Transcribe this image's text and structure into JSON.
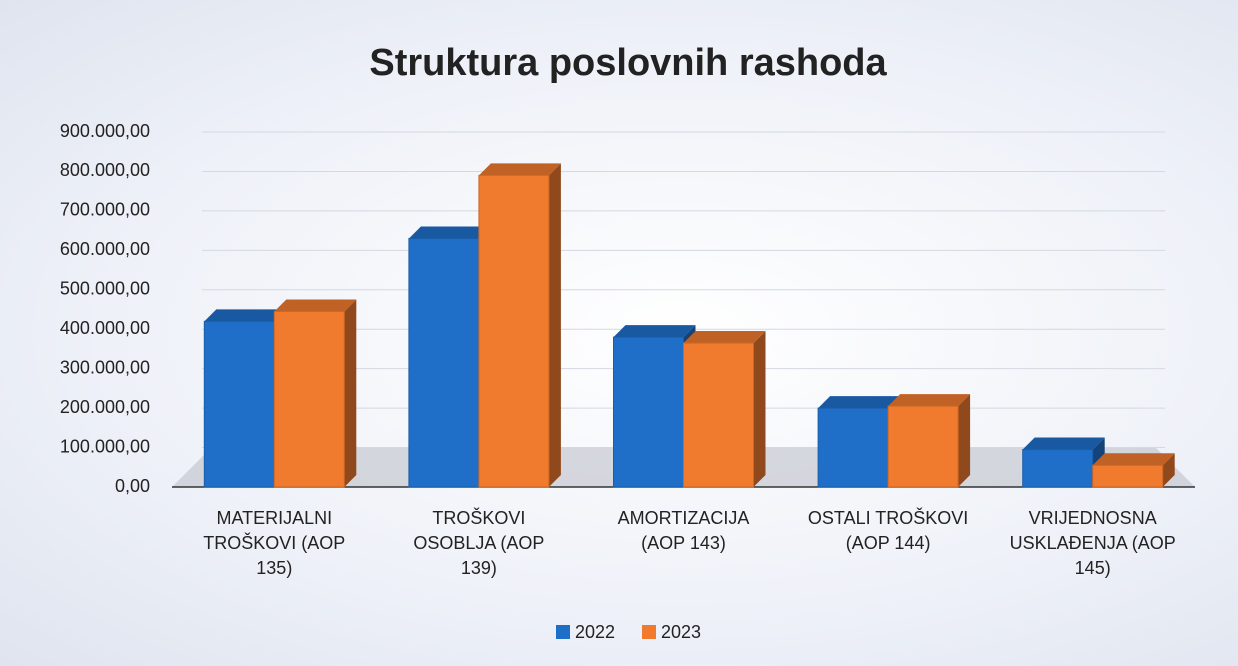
{
  "chart_data": {
    "type": "bar",
    "title": "Struktura poslovnih rashoda",
    "categories": [
      "MATERIJALNI TROŠKOVI (AOP 135)",
      "TROŠKOVI OSOBLJA (AOP 139)",
      "AMORTIZACIJA (AOP 143)",
      "OSTALI TROŠKOVI (AOP 144)",
      "VRIJEDNOSNA USKLAĐENJA (AOP 145)"
    ],
    "series": [
      {
        "name": "2022",
        "color": "#1f6fc9",
        "values": [
          420000,
          630000,
          380000,
          200000,
          95000
        ]
      },
      {
        "name": "2023",
        "color": "#f07a2e",
        "values": [
          445000,
          790000,
          365000,
          205000,
          55000
        ]
      }
    ],
    "ylim": [
      0,
      900000
    ],
    "yticks": [
      {
        "value": 0,
        "label": "0,00"
      },
      {
        "value": 100000,
        "label": "100.000,00"
      },
      {
        "value": 200000,
        "label": "200.000,00"
      },
      {
        "value": 300000,
        "label": "300.000,00"
      },
      {
        "value": 400000,
        "label": "400.000,00"
      },
      {
        "value": 500000,
        "label": "500.000,00"
      },
      {
        "value": 600000,
        "label": "600.000,00"
      },
      {
        "value": 700000,
        "label": "700.000,00"
      },
      {
        "value": 800000,
        "label": "800.000,00"
      },
      {
        "value": 900000,
        "label": "900.000,00"
      }
    ],
    "grid": true,
    "legend": "bottom"
  }
}
